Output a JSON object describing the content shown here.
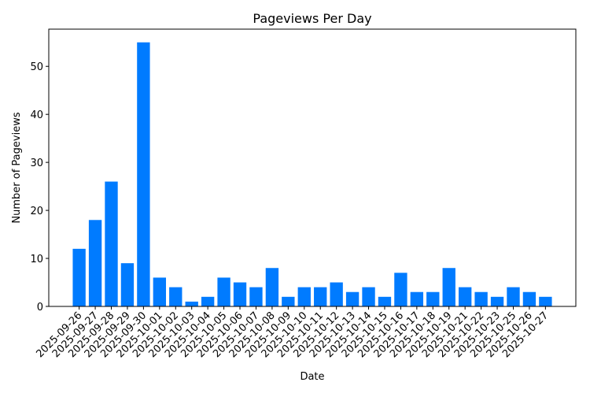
{
  "chart_data": {
    "type": "bar",
    "title": "Pageviews Per Day",
    "x_label": "Date",
    "y_label": "Number of Pageviews",
    "categories": [
      "2025-09-26",
      "2025-09-27",
      "2025-09-28",
      "2025-09-29",
      "2025-09-30",
      "2025-10-01",
      "2025-10-02",
      "2025-10-03",
      "2025-10-04",
      "2025-10-05",
      "2025-10-06",
      "2025-10-07",
      "2025-10-08",
      "2025-10-09",
      "2025-10-10",
      "2025-10-11",
      "2025-10-12",
      "2025-10-13",
      "2025-10-14",
      "2025-10-15",
      "2025-10-16",
      "2025-10-17",
      "2025-10-18",
      "2025-10-19",
      "2025-10-21",
      "2025-10-22",
      "2025-10-23",
      "2025-10-25",
      "2025-10-26",
      "2025-10-27"
    ],
    "values": [
      12,
      18,
      26,
      9,
      55,
      6,
      4,
      1,
      2,
      6,
      5,
      4,
      8,
      2,
      4,
      4,
      5,
      3,
      4,
      2,
      7,
      3,
      3,
      8,
      4,
      3,
      2,
      4,
      3,
      2
    ],
    "color": "#007bff",
    "ylim": [
      0,
      57.75
    ],
    "yticks": [
      0,
      10,
      20,
      30,
      40,
      50
    ],
    "grid": false
  }
}
